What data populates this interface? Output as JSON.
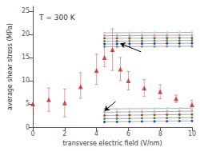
{
  "chart_data": {
    "type": "scatter",
    "title": "T = 300 K",
    "xlabel": "transverse electric field (V/nm)",
    "ylabel": "average shear stress (MPa)",
    "xlim": [
      0,
      10
    ],
    "ylim": [
      0,
      26
    ],
    "xticks": [
      0,
      2,
      4,
      6,
      8,
      10
    ],
    "yticks": [
      0,
      5,
      10,
      15,
      20,
      25
    ],
    "grid": false,
    "series": [
      {
        "type": "scatter",
        "marker": "triangle",
        "color": "#cc2222",
        "x": [
          0,
          1,
          2,
          3,
          4,
          4.5,
          5,
          5.5,
          6,
          7,
          8,
          9,
          10
        ],
        "values": [
          5.0,
          5.9,
          5.2,
          8.7,
          12.2,
          15.0,
          16.7,
          12.5,
          10.0,
          8.4,
          7.6,
          6.1,
          4.8
        ],
        "yerr_lo": [
          2.2,
          2.5,
          3.0,
          2.5,
          3.0,
          2.0,
          4.5,
          2.5,
          2.0,
          1.8,
          1.5,
          0.8,
          1.0
        ],
        "yerr_hi": [
          4.5,
          2.5,
          3.0,
          3.0,
          3.5,
          2.5,
          4.5,
          2.5,
          2.0,
          1.8,
          1.5,
          0.8,
          1.0
        ]
      },
      {
        "type": "line",
        "marker": "circle",
        "line_style": "solid",
        "color": "#999999",
        "colors": [
          "#cccccc",
          "#cccccc",
          "#cccccc",
          "#cccccc",
          "#cccccc",
          "#cccccc",
          "#cccccc",
          "#cccccc"
        ],
        "x": [
          4.5,
          5.285714,
          6.071429,
          6.857143,
          7.642857,
          8.428571,
          9.214286,
          10
        ],
        "values": [
          20.3,
          20.315714,
          20.331429,
          20.347143,
          20.362857,
          20.378571,
          20.394286,
          20.41
        ]
      },
      {
        "type": "line",
        "marker": "circle",
        "line_style": "solid",
        "color": "#999999",
        "colors": [
          "#aaaaaa",
          "#aaaaaa",
          "#aaaaaa",
          "#aaaaaa",
          "#aaaaaa",
          "#aaaaaa",
          "#aaaaaa",
          "#aaaaaa"
        ],
        "x": [
          4.5,
          5.285714,
          6.071429,
          6.857143,
          7.642857,
          8.428571,
          9.214286,
          10
        ],
        "values": [
          19.7,
          19.715714,
          19.731429,
          19.747143,
          19.762857,
          19.778571,
          19.794286,
          19.81
        ]
      },
      {
        "type": "line",
        "marker": "circle",
        "line_style": "solid",
        "color": "#999999",
        "colors": [
          "#cc3333",
          "#cc3333",
          "#cc3333",
          "#cc3333",
          "#cc3333",
          "#cc3333",
          "#cc3333",
          "#cc3333"
        ],
        "x": [
          4.5,
          5.285714,
          6.071429,
          6.857143,
          7.642857,
          8.428571,
          9.214286,
          10
        ],
        "values": [
          19.1,
          19.115714,
          19.131429,
          19.147143,
          19.162857,
          19.178571,
          19.194286,
          19.21
        ]
      },
      {
        "type": "line",
        "marker": "circle",
        "line_style": "solid",
        "color": "#999999",
        "colors": [
          "#22aa22",
          "#22aa22",
          "#22aa22",
          "#22aa22",
          "#22aa22",
          "#22aa22",
          "#22aa22",
          "#22aa22"
        ],
        "x": [
          4.5,
          5.285714,
          6.071429,
          6.857143,
          7.642857,
          8.428571,
          9.214286,
          10
        ],
        "values": [
          18.5,
          18.523571,
          18.547143,
          18.570714,
          18.594286,
          18.617857,
          18.641429,
          18.665
        ]
      },
      {
        "type": "line",
        "marker": "circle",
        "line_style": "solid",
        "color": "#999999",
        "colors": [
          "#2244cc",
          "#2244cc",
          "#2244cc",
          "#2244cc",
          "#2244cc",
          "#2244cc",
          "#2244cc",
          "#2244cc"
        ],
        "x": [
          4.5,
          5.285714,
          6.071429,
          6.857143,
          7.642857,
          8.428571,
          9.214286,
          10
        ],
        "values": [
          17.9,
          17.923571,
          17.947143,
          17.970714,
          17.994286,
          18.017857,
          18.041429,
          18.065
        ]
      },
      {
        "type": "line",
        "marker": "circle",
        "line_style": "solid",
        "color": "#999999",
        "colors": [
          "#888888",
          "#888888",
          "#888888",
          "#888888",
          "#888888",
          "#888888",
          "#888888",
          "#888888"
        ],
        "x": [
          4.5,
          5.285714,
          6.071429,
          6.857143,
          7.642857,
          8.428571,
          9.214286,
          10
        ],
        "values": [
          17.3,
          17.315714,
          17.331429,
          17.347143,
          17.362857,
          17.378571,
          17.394286,
          17.41
        ]
      },
      {
        "type": "line",
        "marker": "circle",
        "line_style": "solid",
        "color": "#999999",
        "colors": [
          "#cccccc",
          "#cccccc",
          "#cccccc",
          "#cccccc",
          "#cccccc",
          "#cccccc",
          "#cccccc",
          "#cccccc"
        ],
        "x": [
          4.5,
          5.285714,
          6.071429,
          6.857143,
          7.642857,
          8.428571,
          9.214286,
          10
        ],
        "values": [
          3.9,
          3.923571,
          3.947143,
          3.970714,
          3.994286,
          4.017857,
          4.041429,
          4.065
        ]
      },
      {
        "type": "line",
        "marker": "circle",
        "line_style": "solid",
        "color": "#999999",
        "colors": [
          "#aaaaaa",
          "#aaaaaa",
          "#aaaaaa",
          "#aaaaaa",
          "#aaaaaa",
          "#aaaaaa",
          "#aaaaaa",
          "#aaaaaa"
        ],
        "x": [
          4.5,
          5.285714,
          6.071429,
          6.857143,
          7.642857,
          8.428571,
          9.214286,
          10
        ],
        "values": [
          3.2,
          3.231429,
          3.262857,
          3.294286,
          3.325714,
          3.357143,
          3.388571,
          3.42
        ]
      },
      {
        "type": "line",
        "marker": "circle",
        "line_style": "solid",
        "color": "#999999",
        "colors": [
          "#cc3333",
          "#cc3333",
          "#cc3333",
          "#cc3333",
          "#cc3333",
          "#cc3333",
          "#cc3333",
          "#cc3333"
        ],
        "x": [
          4.5,
          5.285714,
          6.071429,
          6.857143,
          7.642857,
          8.428571,
          9.214286,
          10
        ],
        "values": [
          2.5,
          2.531429,
          2.562857,
          2.594286,
          2.625714,
          2.657143,
          2.688571,
          2.72
        ]
      },
      {
        "type": "line",
        "marker": "circle",
        "line_style": "solid",
        "color": "#999999",
        "colors": [
          "#22aa22",
          "#22aa22",
          "#22aa22",
          "#22aa22",
          "#22aa22",
          "#22aa22",
          "#22aa22",
          "#22aa22"
        ],
        "x": [
          4.5,
          5.285714,
          6.071429,
          6.857143,
          7.642857,
          8.428571,
          9.214286,
          10
        ],
        "values": [
          1.8,
          1.831429,
          1.862857,
          1.894286,
          1.925714,
          1.957143,
          1.988571,
          2.02
        ]
      },
      {
        "type": "line",
        "marker": "circle",
        "line_style": "solid",
        "color": "#999999",
        "colors": [
          "#2244cc",
          "#2244cc",
          "#2244cc",
          "#2244cc",
          "#2244cc",
          "#2244cc",
          "#2244cc",
          "#2244cc"
        ],
        "x": [
          4.5,
          5.285714,
          6.071429,
          6.857143,
          7.642857,
          8.428571,
          9.214286,
          10
        ],
        "values": [
          1.1,
          1.131429,
          1.162857,
          1.194286,
          1.225714,
          1.257143,
          1.288571,
          1.32
        ]
      }
    ],
    "arrows": [
      {
        "start": [
          6.8,
          16.2
        ],
        "end": [
          5.5,
          18.0
        ],
        "color": "#000000"
      },
      {
        "start": [
          5.2,
          5.5
        ],
        "end": [
          4.5,
          3.5
        ],
        "color": "#000000"
      }
    ]
  }
}
